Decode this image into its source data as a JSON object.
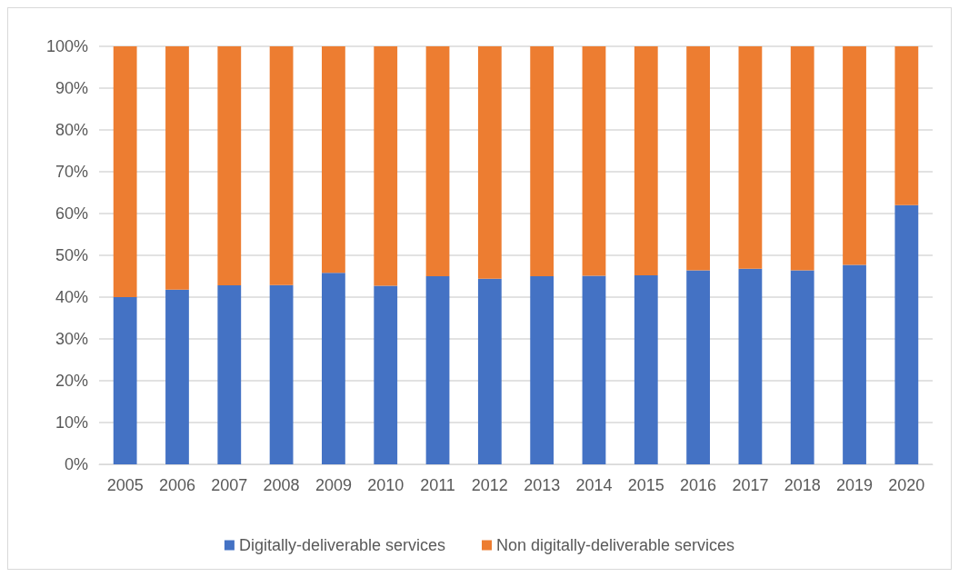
{
  "chart_data": {
    "type": "bar",
    "stacked": true,
    "categories": [
      "2005",
      "2006",
      "2007",
      "2008",
      "2009",
      "2010",
      "2011",
      "2012",
      "2013",
      "2014",
      "2015",
      "2016",
      "2017",
      "2018",
      "2019",
      "2020"
    ],
    "series": [
      {
        "name": "Digitally-deliverable services",
        "color": "#4472c4",
        "values": [
          40.0,
          41.8,
          42.8,
          42.9,
          45.8,
          42.7,
          45.0,
          44.4,
          45.0,
          45.1,
          45.2,
          46.4,
          46.8,
          46.4,
          47.7,
          62.0
        ]
      },
      {
        "name": "Non digitally-deliverable services",
        "color": "#ed7d31",
        "values": [
          60.0,
          58.2,
          57.2,
          57.1,
          54.2,
          57.3,
          55.0,
          55.6,
          55.0,
          54.9,
          54.8,
          53.6,
          53.2,
          53.6,
          52.3,
          38.0
        ]
      }
    ],
    "ylim": [
      0,
      100
    ],
    "yticks": [
      {
        "value": 0,
        "label": "0%"
      },
      {
        "value": 10,
        "label": "10%"
      },
      {
        "value": 20,
        "label": "20%"
      },
      {
        "value": 30,
        "label": "30%"
      },
      {
        "value": 40,
        "label": "40%"
      },
      {
        "value": 50,
        "label": "50%"
      },
      {
        "value": 60,
        "label": "60%"
      },
      {
        "value": 70,
        "label": "70%"
      },
      {
        "value": 80,
        "label": "80%"
      },
      {
        "value": 90,
        "label": "90%"
      },
      {
        "value": 100,
        "label": "100%"
      }
    ],
    "grid": "y",
    "legend": "bottom"
  }
}
